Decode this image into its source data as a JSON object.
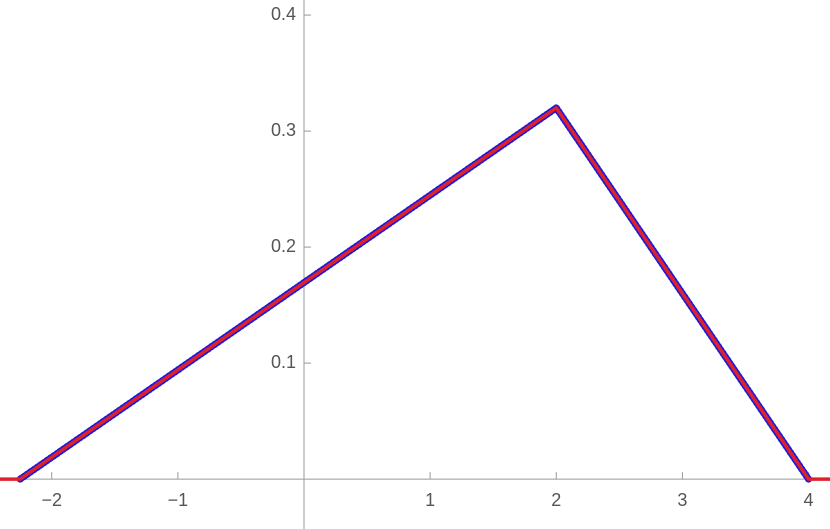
{
  "chart_data": {
    "type": "line",
    "xlim": [
      -2.41,
      4.17
    ],
    "ylim": [
      -0.043,
      0.413
    ],
    "xticks": [
      {
        "value": -2,
        "label": "−2"
      },
      {
        "value": -1,
        "label": "−1"
      },
      1,
      2,
      3,
      4
    ],
    "yticks": [
      0.1,
      0.2,
      0.3,
      0.4
    ],
    "series": [
      {
        "color": "#1a1adb",
        "style": "dotted",
        "x": [
          -2.25,
          2,
          4
        ],
        "values": [
          0,
          0.32,
          0
        ]
      },
      {
        "color": "#e0202a",
        "style": "solid",
        "x": [
          -2.41,
          -2.25,
          2,
          4,
          4.17
        ],
        "values": [
          0,
          0,
          0.32,
          0,
          0
        ]
      }
    ]
  }
}
